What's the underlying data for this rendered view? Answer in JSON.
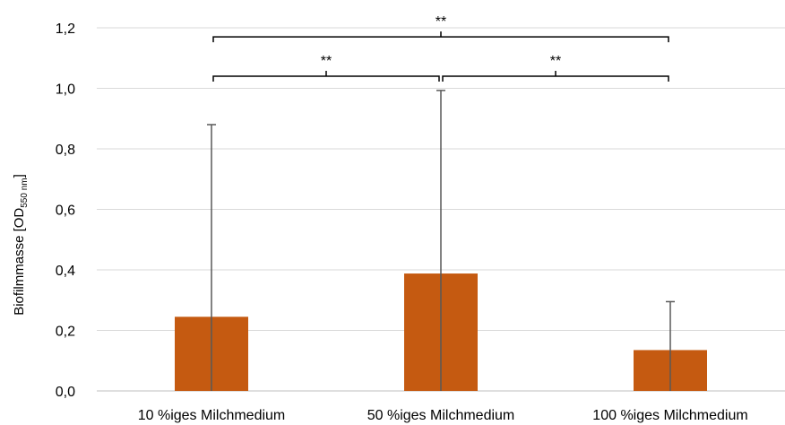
{
  "chart_data": {
    "type": "bar",
    "title": "",
    "xlabel": "",
    "ylabel_main": "Biofilmmasse [OD",
    "ylabel_sub": "550 nm",
    "ylabel_end": "]",
    "categories": [
      "10 %iges Milchmedium",
      "50 %iges Milchmedium",
      "100 %iges Milchmedium"
    ],
    "values": [
      0.245,
      0.388,
      0.135
    ],
    "error_upper": [
      0.88,
      0.993,
      0.295
    ],
    "ylim": [
      0,
      1.2
    ],
    "yticks": [
      0,
      0.2,
      0.4,
      0.6,
      0.8,
      1.0,
      1.2
    ],
    "ytick_labels": [
      "0,0",
      "0,2",
      "0,4",
      "0,6",
      "0,8",
      "1,0",
      "1,2"
    ],
    "grid": true,
    "bar_color": "#c55a11",
    "error_color": "#595959",
    "significance": [
      {
        "from": 0,
        "to": 1,
        "label": "**",
        "y": 1.04
      },
      {
        "from": 1,
        "to": 2,
        "label": "**",
        "y": 1.04
      },
      {
        "from": 0,
        "to": 2,
        "label": "**",
        "y": 1.17
      }
    ]
  }
}
